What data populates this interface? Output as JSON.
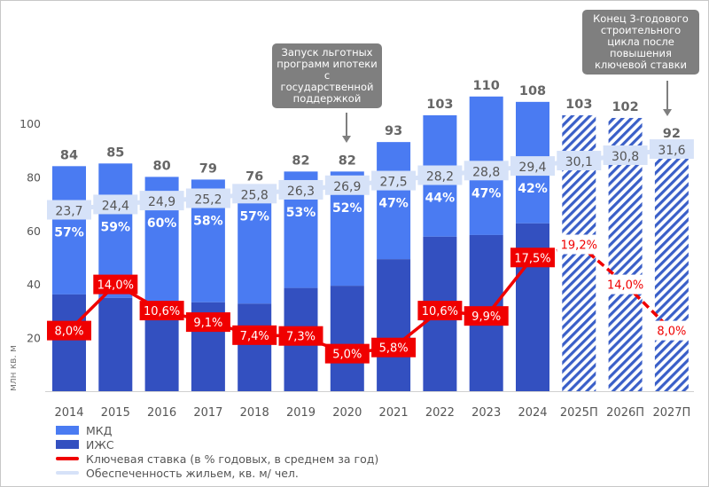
{
  "chart_data": {
    "type": "bar",
    "ylabel": "млн кв. м",
    "ylim": [
      0,
      100
    ],
    "yticks": [
      20,
      40,
      60,
      80,
      100
    ],
    "categories": [
      "2014",
      "2015",
      "2016",
      "2017",
      "2018",
      "2019",
      "2020",
      "2021",
      "2022",
      "2023",
      "2024",
      "2025П",
      "2026П",
      "2027П"
    ],
    "totals": [
      84,
      85,
      80,
      79,
      76,
      82,
      82,
      93,
      103,
      110,
      108,
      103,
      102,
      92
    ],
    "forecast": [
      false,
      false,
      false,
      false,
      false,
      false,
      false,
      false,
      false,
      false,
      false,
      true,
      true,
      true
    ],
    "series": [
      {
        "name": "МКД",
        "share_labels": [
          "57%",
          "59%",
          "60%",
          "58%",
          "57%",
          "53%",
          "52%",
          "47%",
          "44%",
          "47%",
          "42%",
          null,
          null,
          null
        ],
        "color": "#4a7bf2"
      },
      {
        "name": "ИЖС",
        "color": "#3350c0"
      }
    ],
    "lines": [
      {
        "name": "Ключевая ставка (в % годовых, в среднем за год)",
        "color": "#f00000",
        "values": [
          8.0,
          14.0,
          10.6,
          9.1,
          7.4,
          7.3,
          5.0,
          5.8,
          10.6,
          9.9,
          17.5,
          19.2,
          14.0,
          8.0
        ],
        "labels": [
          "8,0%",
          "14,0%",
          "10,6%",
          "9,1%",
          "7,4%",
          "7,3%",
          "5,0%",
          "5,8%",
          "10,6%",
          "9,9%",
          "17,5%",
          "19,2%",
          "14,0%",
          "8,0%"
        ]
      },
      {
        "name": "Обеспеченность жильем, кв. м/ чел.",
        "color": "#d6e2f8",
        "values": [
          23.7,
          24.4,
          24.9,
          25.2,
          25.8,
          26.3,
          26.9,
          27.5,
          28.2,
          28.8,
          29.4,
          30.1,
          30.8,
          31.6
        ],
        "labels": [
          "23,7",
          "24,4",
          "24,9",
          "25,2",
          "25,8",
          "26,3",
          "26,9",
          "27,5",
          "28,2",
          "28,8",
          "29,4",
          "30,1",
          "30,8",
          "31,6"
        ]
      }
    ],
    "annotations": [
      {
        "category": "2020",
        "text": "Запуск льготных программ ипотеки с государственной поддержкой"
      },
      {
        "category": "2027П",
        "text": "Конец 3-годового строительного цикла после повышения ключевой ставки"
      }
    ],
    "legend_position": "bottom-left",
    "grid": false
  }
}
